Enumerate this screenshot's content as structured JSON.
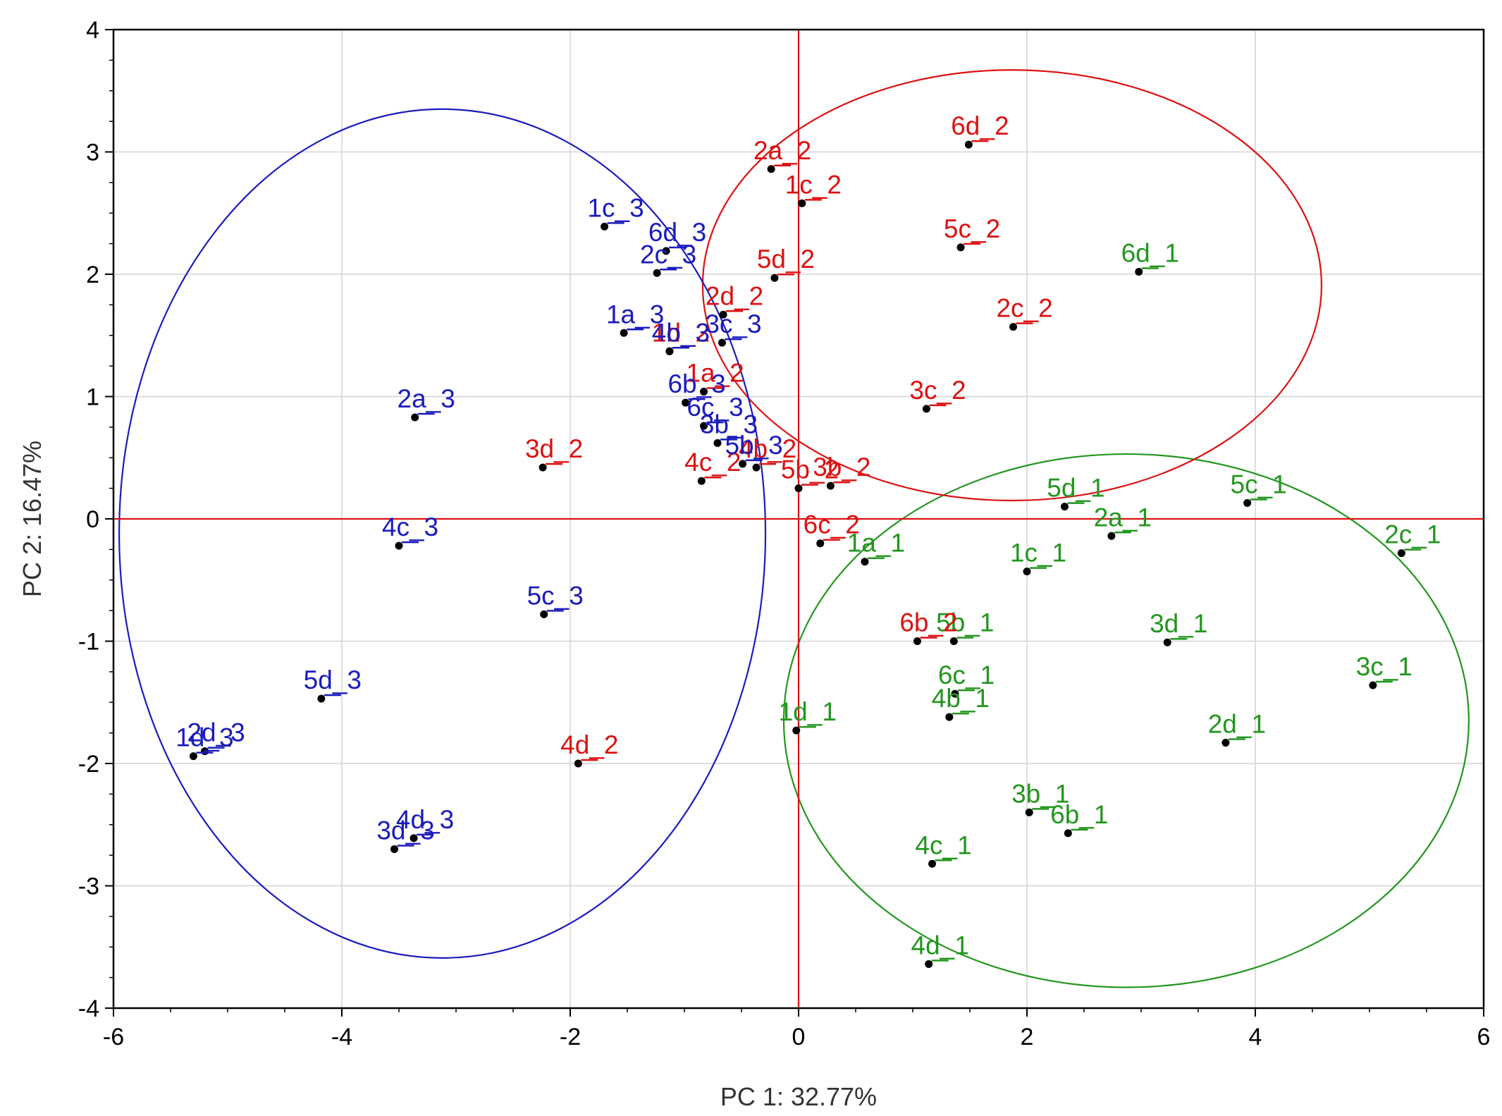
{
  "chart_data": {
    "type": "scatter",
    "title": "",
    "xlabel": "PC 1: 32.77%",
    "ylabel": "PC 2: 16.47%",
    "xlim": [
      -6,
      6
    ],
    "ylim": [
      -4,
      4
    ],
    "xticks": [
      -6,
      -4,
      -2,
      0,
      2,
      4,
      6
    ],
    "yticks": [
      -4,
      -3,
      -2,
      -1,
      0,
      1,
      2,
      3,
      4
    ],
    "grid": true,
    "legend": "none",
    "reference_lines": {
      "x": 0,
      "y": 0,
      "color": "#dd1111"
    },
    "series": [
      {
        "color": "#22961e",
        "ellipse": {
          "cx": 2.87,
          "cy": -1.65,
          "rx": 3.0,
          "ry": 2.18
        },
        "points": [
          {
            "label": "6d_1",
            "x": 2.98,
            "y": 2.02
          },
          {
            "label": "5d_1",
            "x": 2.33,
            "y": 0.1
          },
          {
            "label": "5c_1",
            "x": 3.93,
            "y": 0.13
          },
          {
            "label": "2a_1",
            "x": 2.74,
            "y": -0.14
          },
          {
            "label": "2c_1",
            "x": 5.28,
            "y": -0.28
          },
          {
            "label": "1a_1",
            "x": 0.58,
            "y": -0.35
          },
          {
            "label": "1c_1",
            "x": 2.0,
            "y": -0.43
          },
          {
            "label": "5b_1",
            "x": 1.36,
            "y": -1.0
          },
          {
            "label": "3d_1",
            "x": 3.23,
            "y": -1.01
          },
          {
            "label": "3c_1",
            "x": 5.03,
            "y": -1.36
          },
          {
            "label": "6c_1",
            "x": 1.37,
            "y": -1.43
          },
          {
            "label": "4b_1",
            "x": 1.32,
            "y": -1.62
          },
          {
            "label": "1d_1",
            "x": -0.02,
            "y": -1.73
          },
          {
            "label": "2d_1",
            "x": 3.74,
            "y": -1.83
          },
          {
            "label": "3b_1",
            "x": 2.02,
            "y": -2.4
          },
          {
            "label": "6b_1",
            "x": 2.36,
            "y": -2.57
          },
          {
            "label": "4c_1",
            "x": 1.17,
            "y": -2.82
          },
          {
            "label": "4d_1",
            "x": 1.14,
            "y": -3.64
          }
        ]
      },
      {
        "color": "#dd1111",
        "ellipse": {
          "cx": 1.87,
          "cy": 1.91,
          "rx": 2.71,
          "ry": 1.76
        },
        "points": [
          {
            "label": "6d_2",
            "x": 1.49,
            "y": 3.06
          },
          {
            "label": "2a_2",
            "x": -0.24,
            "y": 2.86
          },
          {
            "label": "1c_2",
            "x": 0.03,
            "y": 2.58
          },
          {
            "label": "5c_2",
            "x": 1.42,
            "y": 2.22
          },
          {
            "label": "5d_2",
            "x": -0.21,
            "y": 1.97
          },
          {
            "label": "2d_2",
            "x": -0.66,
            "y": 1.67
          },
          {
            "label": "2c_2",
            "x": 1.88,
            "y": 1.57
          },
          {
            "label": "1d_2",
            "x": -1.13,
            "y": 1.37
          },
          {
            "label": "1a_2",
            "x": -0.83,
            "y": 1.04
          },
          {
            "label": "3c_2",
            "x": 1.12,
            "y": 0.9
          },
          {
            "label": "3d_2",
            "x": -2.24,
            "y": 0.42
          },
          {
            "label": "4b_2",
            "x": -0.37,
            "y": 0.42
          },
          {
            "label": "4c_2",
            "x": -0.85,
            "y": 0.31
          },
          {
            "label": "5b_2",
            "x": 0.0,
            "y": 0.25
          },
          {
            "label": "3b_2",
            "x": 0.28,
            "y": 0.27
          },
          {
            "label": "6c_2",
            "x": 0.19,
            "y": -0.2
          },
          {
            "label": "6b_2",
            "x": 1.04,
            "y": -1.0
          },
          {
            "label": "4d_2",
            "x": -1.93,
            "y": -2.0
          }
        ]
      },
      {
        "color": "#1b1bbd",
        "ellipse": {
          "cx": -3.12,
          "cy": -0.12,
          "rx": 2.83,
          "ry": 3.47
        },
        "points": [
          {
            "label": "1c_3",
            "x": -1.7,
            "y": 2.39
          },
          {
            "label": "6d_3",
            "x": -1.16,
            "y": 2.19
          },
          {
            "label": "2c_3",
            "x": -1.24,
            "y": 2.01
          },
          {
            "label": "1a_3",
            "x": -1.53,
            "y": 1.52
          },
          {
            "label": "3c_3",
            "x": -0.67,
            "y": 1.44
          },
          {
            "label": "4b_3",
            "x": -1.13,
            "y": 1.37
          },
          {
            "label": "6b_3",
            "x": -0.99,
            "y": 0.95
          },
          {
            "label": "6c_3",
            "x": -0.83,
            "y": 0.76
          },
          {
            "label": "3b_3",
            "x": -0.71,
            "y": 0.62
          },
          {
            "label": "5b_3",
            "x": -0.49,
            "y": 0.45
          },
          {
            "label": "2a_3",
            "x": -3.36,
            "y": 0.83
          },
          {
            "label": "4c_3",
            "x": -3.5,
            "y": -0.22
          },
          {
            "label": "5c_3",
            "x": -2.23,
            "y": -0.78
          },
          {
            "label": "5d_3",
            "x": -4.18,
            "y": -1.47
          },
          {
            "label": "2d_3",
            "x": -5.2,
            "y": -1.9
          },
          {
            "label": "1d_3",
            "x": -5.3,
            "y": -1.94
          },
          {
            "label": "4d_3",
            "x": -3.37,
            "y": -2.61
          },
          {
            "label": "3d_3",
            "x": -3.54,
            "y": -2.7
          }
        ]
      }
    ]
  }
}
